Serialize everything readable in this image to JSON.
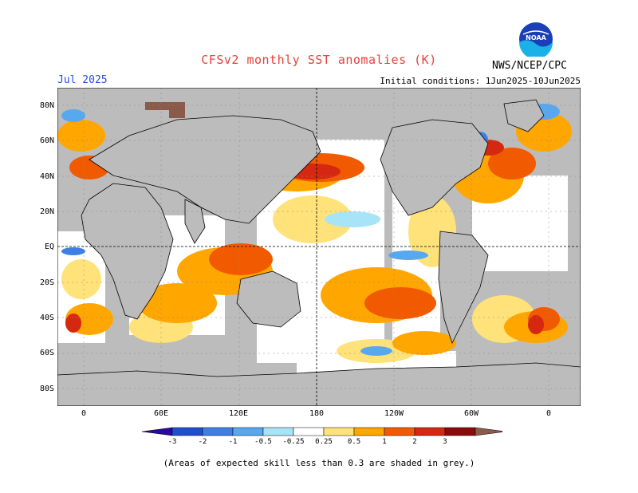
{
  "title": "CFSv2 monthly SST anomalies (K)",
  "forecast_month": "Jul 2025",
  "initial_conditions": "Initial conditions: 1Jun2025-10Jun2025",
  "agency": "NWS/NCEP/CPC",
  "logo_text": "NOAA",
  "lat_labels": [
    "80N",
    "60N",
    "40N",
    "20N",
    "EQ",
    "20S",
    "40S",
    "60S",
    "80S"
  ],
  "lon_labels": [
    "0",
    "60E",
    "120E",
    "180",
    "120W",
    "60W",
    "0"
  ],
  "colorbar": {
    "labels": [
      "-3",
      "-2",
      "-1",
      "-0.5",
      "-0.25",
      "0.25",
      "0.5",
      "1",
      "2",
      "3"
    ],
    "colors": [
      "#2a0a9c",
      "#1f4fd0",
      "#3e7fe6",
      "#58a8f0",
      "#a8e4f8",
      "#ffffff",
      "#ffe27a",
      "#ffa600",
      "#f25a00",
      "#d62810",
      "#8c0a0a",
      "#8a5a4a"
    ]
  },
  "footnote": "(Areas of expected skill less than 0.3 are shaded in grey.)"
}
